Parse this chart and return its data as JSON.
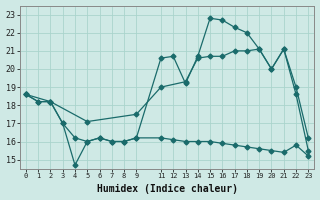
{
  "background_color": "#cfe9e5",
  "grid_color": "#aad4cc",
  "line_color": "#1a6b6b",
  "xlabel": "Humidex (Indice chaleur)",
  "ylim": [
    14.5,
    23.5
  ],
  "xlim": [
    -0.5,
    23.5
  ],
  "yticks": [
    15,
    16,
    17,
    18,
    19,
    20,
    21,
    22,
    23
  ],
  "xticks": [
    0,
    1,
    2,
    3,
    4,
    5,
    6,
    7,
    8,
    9,
    11,
    12,
    13,
    14,
    15,
    16,
    17,
    18,
    19,
    20,
    21,
    22,
    23
  ],
  "series1_x": [
    0,
    1,
    2,
    3,
    4,
    5,
    6,
    7,
    8,
    9,
    11,
    12,
    13,
    14,
    15,
    16,
    17,
    18,
    19,
    20,
    21,
    22,
    23
  ],
  "series1_y": [
    18.6,
    18.2,
    18.2,
    17.0,
    14.7,
    16.0,
    16.2,
    16.0,
    16.0,
    16.2,
    20.6,
    20.7,
    19.2,
    20.7,
    22.8,
    22.7,
    22.3,
    22.0,
    21.1,
    20.0,
    21.1,
    19.0,
    16.2
  ],
  "series2_x": [
    0,
    2,
    5,
    9,
    11,
    13,
    14,
    15,
    16,
    17,
    18,
    19,
    20,
    21,
    22,
    23
  ],
  "series2_y": [
    18.6,
    18.2,
    17.1,
    17.5,
    19.0,
    19.3,
    20.6,
    20.7,
    20.7,
    21.0,
    21.0,
    21.1,
    20.0,
    21.1,
    18.6,
    15.5
  ],
  "series3_x": [
    0,
    1,
    2,
    3,
    4,
    5,
    6,
    7,
    8,
    9,
    11,
    12,
    13,
    14,
    15,
    16,
    17,
    18,
    19,
    20,
    21,
    22,
    23
  ],
  "series3_y": [
    18.6,
    18.2,
    18.2,
    17.0,
    16.2,
    16.0,
    16.2,
    16.0,
    16.0,
    16.2,
    16.2,
    16.1,
    16.0,
    16.0,
    16.0,
    15.9,
    15.8,
    15.7,
    15.6,
    15.5,
    15.4,
    15.8,
    15.2
  ]
}
